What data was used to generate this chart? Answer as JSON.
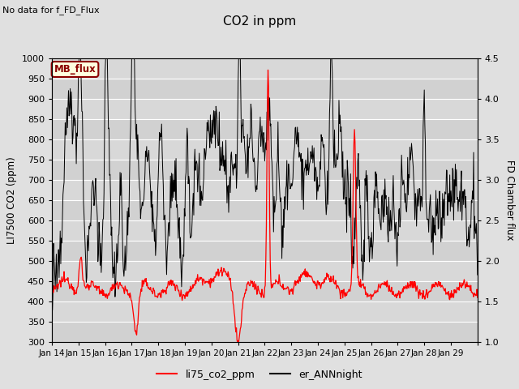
{
  "title": "CO2 in ppm",
  "ylabel_left": "LI7500 CO2 (ppm)",
  "ylabel_right": "FD Chamber flux",
  "no_data_text": "No data for f_FD_Flux",
  "mb_flux_label": "MB_flux",
  "ylim_left": [
    300,
    1000
  ],
  "ylim_right": [
    1.0,
    4.5
  ],
  "yticks_left": [
    300,
    350,
    400,
    450,
    500,
    550,
    600,
    650,
    700,
    750,
    800,
    850,
    900,
    950,
    1000
  ],
  "yticks_right": [
    1.0,
    1.5,
    2.0,
    2.5,
    3.0,
    3.5,
    4.0,
    4.5
  ],
  "xtick_labels": [
    "Jan 14",
    "Jan 15",
    "Jan 16",
    "Jan 17",
    "Jan 18",
    "Jan 19",
    "Jan 20",
    "Jan 21",
    "Jan 22",
    "Jan 23",
    "Jan 24",
    "Jan 25",
    "Jan 26",
    "Jan 27",
    "Jan 28",
    "Jan 29"
  ],
  "legend_labels": [
    "li75_co2_ppm",
    "er_ANNnight"
  ],
  "legend_colors": [
    "red",
    "black"
  ],
  "bg_color": "#e0e0e0",
  "plot_bg_color": "#d8d8d8",
  "grid_color": "white"
}
